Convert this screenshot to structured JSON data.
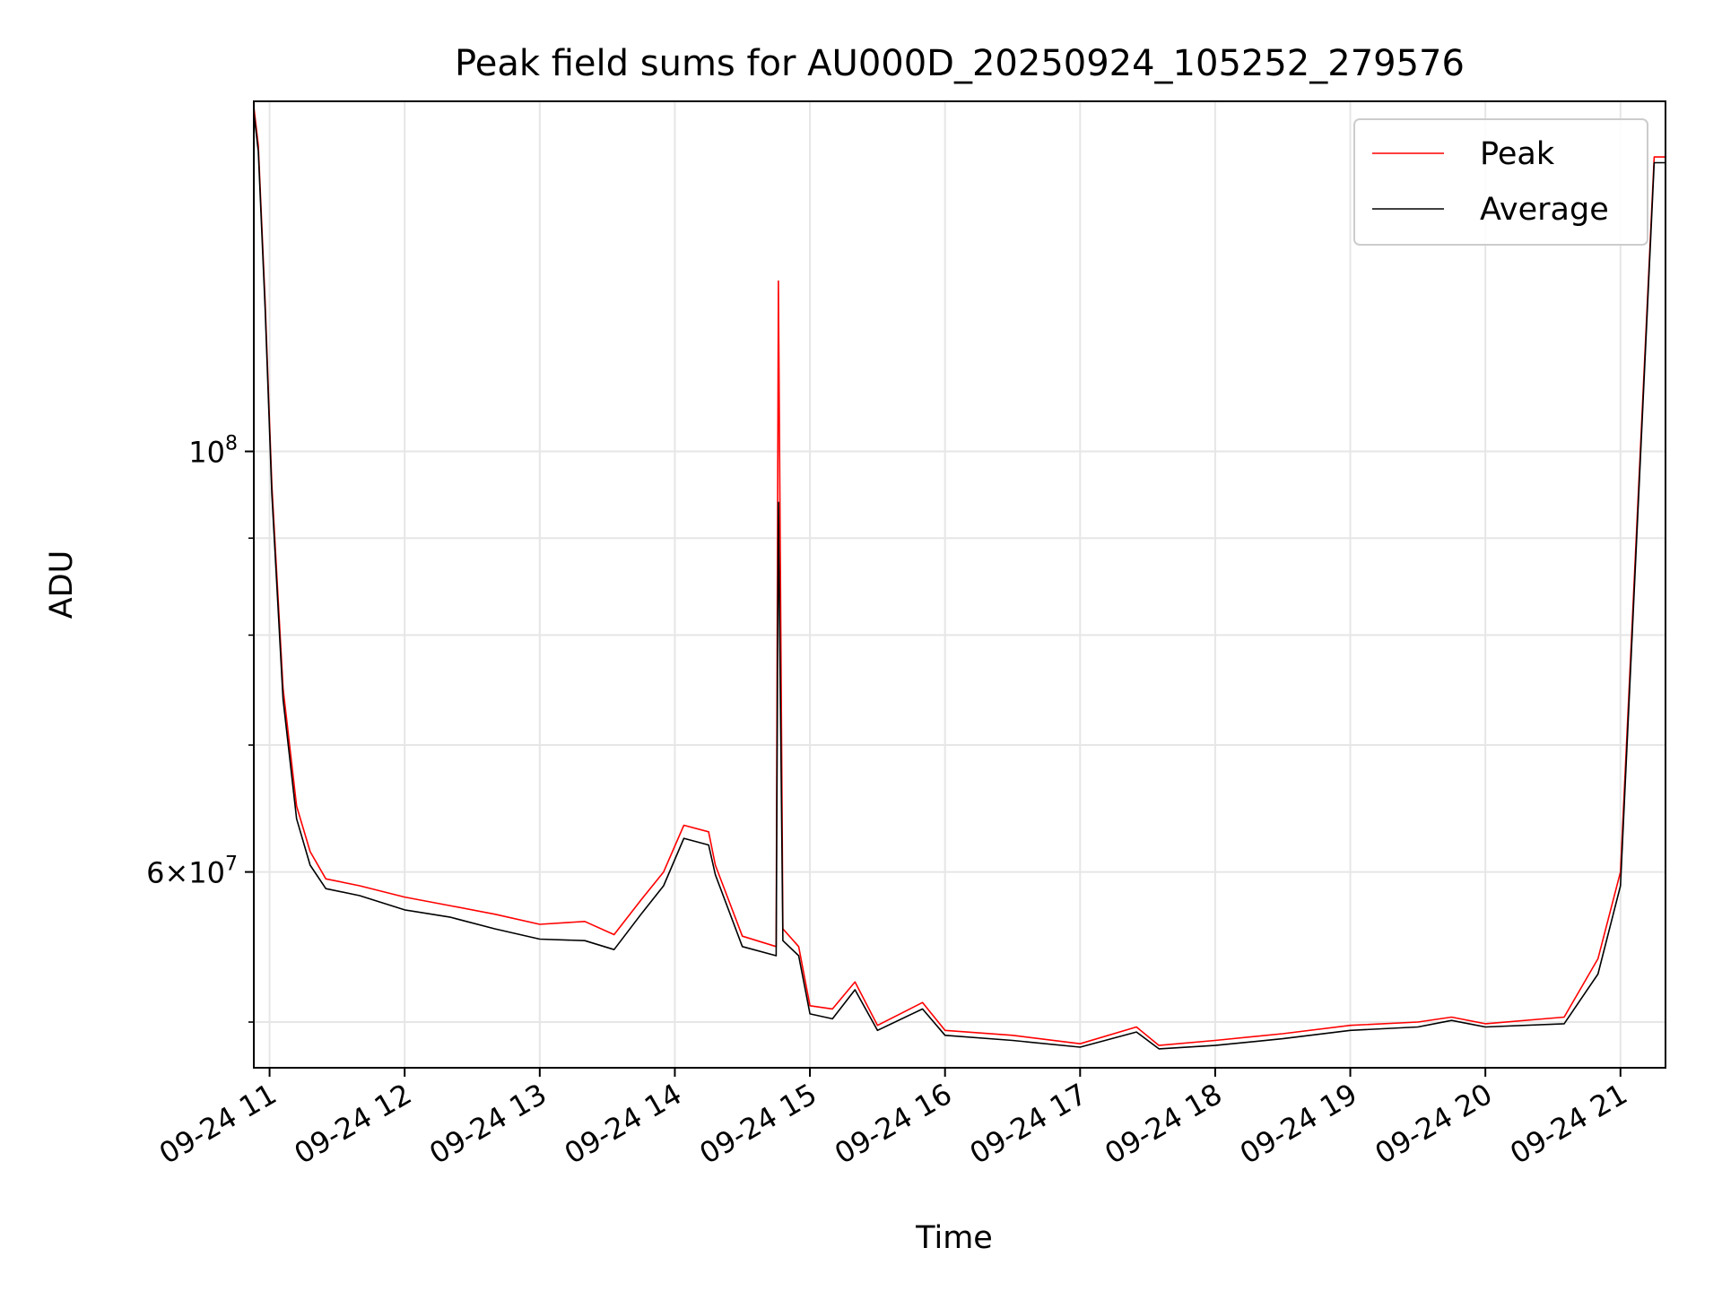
{
  "chart_data": {
    "type": "line",
    "title": "Peak field sums for AU000D_20250924_105252_279576",
    "xlabel": "Time",
    "ylabel": "ADU",
    "yscale": "log",
    "ylim": [
      47300000,
      153000000
    ],
    "xlim": [
      "2025-09-24 10:53",
      "2025-09-24 21:20"
    ],
    "grid": true,
    "legend": "top-right",
    "x_ticks": [
      {
        "t": "2025-09-24 11:00",
        "label": "09-24 11"
      },
      {
        "t": "2025-09-24 12:00",
        "label": "09-24 12"
      },
      {
        "t": "2025-09-24 13:00",
        "label": "09-24 13"
      },
      {
        "t": "2025-09-24 14:00",
        "label": "09-24 14"
      },
      {
        "t": "2025-09-24 15:00",
        "label": "09-24 15"
      },
      {
        "t": "2025-09-24 16:00",
        "label": "09-24 16"
      },
      {
        "t": "2025-09-24 17:00",
        "label": "09-24 17"
      },
      {
        "t": "2025-09-24 18:00",
        "label": "09-24 18"
      },
      {
        "t": "2025-09-24 19:00",
        "label": "09-24 19"
      },
      {
        "t": "2025-09-24 20:00",
        "label": "09-24 20"
      },
      {
        "t": "2025-09-24 21:00",
        "label": "09-24 21"
      }
    ],
    "y_ticks": [
      {
        "v": 100000000,
        "base": "10",
        "exp": "8"
      },
      {
        "v": 60000000,
        "base": "6×10",
        "exp": "7"
      }
    ],
    "y_minor_ticks": [
      50000000,
      70000000,
      80000000,
      90000000
    ],
    "series": [
      {
        "name": "Peak",
        "color": "#ff0000",
        "points": [
          [
            "2025-09-24 10:53",
            152000000
          ],
          [
            "2025-09-24 10:55",
            145000000
          ],
          [
            "2025-09-24 10:58",
            120000000
          ],
          [
            "2025-09-24 11:01",
            96000000
          ],
          [
            "2025-09-24 11:06",
            75000000
          ],
          [
            "2025-09-24 11:12",
            65000000
          ],
          [
            "2025-09-24 11:18",
            61500000
          ],
          [
            "2025-09-24 11:25",
            59500000
          ],
          [
            "2025-09-24 11:40",
            59000000
          ],
          [
            "2025-09-24 12:00",
            58200000
          ],
          [
            "2025-09-24 12:20",
            57600000
          ],
          [
            "2025-09-24 12:40",
            57000000
          ],
          [
            "2025-09-24 13:00",
            56300000
          ],
          [
            "2025-09-24 13:20",
            56500000
          ],
          [
            "2025-09-24 13:33",
            55600000
          ],
          [
            "2025-09-24 13:45",
            58000000
          ],
          [
            "2025-09-24 13:55",
            60000000
          ],
          [
            "2025-09-24 14:04",
            63500000
          ],
          [
            "2025-09-24 14:15",
            63000000
          ],
          [
            "2025-09-24 14:18",
            60500000
          ],
          [
            "2025-09-24 14:30",
            55500000
          ],
          [
            "2025-09-24 14:45",
            54800000
          ],
          [
            "2025-09-24 14:46",
            123000000
          ],
          [
            "2025-09-24 14:48",
            56000000
          ],
          [
            "2025-09-24 14:55",
            54800000
          ],
          [
            "2025-09-24 15:00",
            51000000
          ],
          [
            "2025-09-24 15:10",
            50800000
          ],
          [
            "2025-09-24 15:20",
            52500000
          ],
          [
            "2025-09-24 15:30",
            49800000
          ],
          [
            "2025-09-24 15:50",
            51200000
          ],
          [
            "2025-09-24 16:00",
            49500000
          ],
          [
            "2025-09-24 16:30",
            49200000
          ],
          [
            "2025-09-24 17:00",
            48700000
          ],
          [
            "2025-09-24 17:25",
            49700000
          ],
          [
            "2025-09-24 17:35",
            48600000
          ],
          [
            "2025-09-24 18:00",
            48900000
          ],
          [
            "2025-09-24 18:30",
            49300000
          ],
          [
            "2025-09-24 19:00",
            49800000
          ],
          [
            "2025-09-24 19:30",
            50000000
          ],
          [
            "2025-09-24 19:45",
            50300000
          ],
          [
            "2025-09-24 20:00",
            49900000
          ],
          [
            "2025-09-24 20:35",
            50300000
          ],
          [
            "2025-09-24 20:50",
            54000000
          ],
          [
            "2025-09-24 21:00",
            60000000
          ],
          [
            "2025-09-24 21:15",
            143000000
          ],
          [
            "2025-09-24 21:20",
            143000000
          ]
        ]
      },
      {
        "name": "Average",
        "color": "#000000",
        "points": [
          [
            "2025-09-24 10:53",
            151000000
          ],
          [
            "2025-09-24 10:55",
            144000000
          ],
          [
            "2025-09-24 10:58",
            119000000
          ],
          [
            "2025-09-24 11:01",
            95000000
          ],
          [
            "2025-09-24 11:06",
            74000000
          ],
          [
            "2025-09-24 11:12",
            64000000
          ],
          [
            "2025-09-24 11:18",
            60500000
          ],
          [
            "2025-09-24 11:25",
            58800000
          ],
          [
            "2025-09-24 11:40",
            58300000
          ],
          [
            "2025-09-24 12:00",
            57300000
          ],
          [
            "2025-09-24 12:20",
            56800000
          ],
          [
            "2025-09-24 12:40",
            56000000
          ],
          [
            "2025-09-24 13:00",
            55300000
          ],
          [
            "2025-09-24 13:20",
            55200000
          ],
          [
            "2025-09-24 13:33",
            54600000
          ],
          [
            "2025-09-24 13:45",
            57000000
          ],
          [
            "2025-09-24 13:55",
            59000000
          ],
          [
            "2025-09-24 14:04",
            62500000
          ],
          [
            "2025-09-24 14:15",
            62000000
          ],
          [
            "2025-09-24 14:18",
            59800000
          ],
          [
            "2025-09-24 14:30",
            54800000
          ],
          [
            "2025-09-24 14:45",
            54200000
          ],
          [
            "2025-09-24 14:46",
            94000000
          ],
          [
            "2025-09-24 14:48",
            55200000
          ],
          [
            "2025-09-24 14:55",
            54200000
          ],
          [
            "2025-09-24 15:00",
            50500000
          ],
          [
            "2025-09-24 15:10",
            50200000
          ],
          [
            "2025-09-24 15:20",
            52000000
          ],
          [
            "2025-09-24 15:30",
            49500000
          ],
          [
            "2025-09-24 15:50",
            50800000
          ],
          [
            "2025-09-24 16:00",
            49200000
          ],
          [
            "2025-09-24 16:30",
            48900000
          ],
          [
            "2025-09-24 17:00",
            48500000
          ],
          [
            "2025-09-24 17:25",
            49400000
          ],
          [
            "2025-09-24 17:35",
            48400000
          ],
          [
            "2025-09-24 18:00",
            48600000
          ],
          [
            "2025-09-24 18:30",
            49000000
          ],
          [
            "2025-09-24 19:00",
            49500000
          ],
          [
            "2025-09-24 19:30",
            49700000
          ],
          [
            "2025-09-24 19:45",
            50100000
          ],
          [
            "2025-09-24 20:00",
            49700000
          ],
          [
            "2025-09-24 20:35",
            49900000
          ],
          [
            "2025-09-24 20:50",
            53000000
          ],
          [
            "2025-09-24 21:00",
            59000000
          ],
          [
            "2025-09-24 21:15",
            142000000
          ],
          [
            "2025-09-24 21:20",
            142000000
          ]
        ]
      }
    ]
  }
}
